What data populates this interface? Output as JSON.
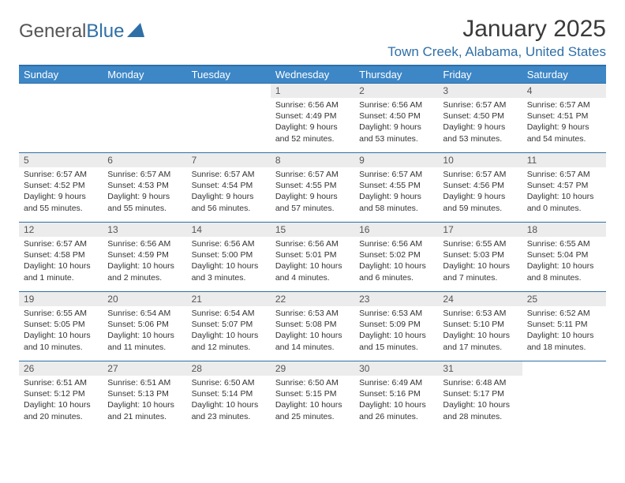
{
  "brand": {
    "part1": "General",
    "part2": "Blue"
  },
  "title": "January 2025",
  "location": "Town Creek, Alabama, United States",
  "colors": {
    "header_bg": "#3d87c7",
    "header_border": "#2f6fa7",
    "row_border": "#2f6fa7",
    "daynum_bg": "#ececec",
    "text": "#333333",
    "location_color": "#2f6fa7"
  },
  "font": {
    "title_size": 30,
    "location_size": 17,
    "th_size": 13,
    "cell_size": 10.5
  },
  "day_names": [
    "Sunday",
    "Monday",
    "Tuesday",
    "Wednesday",
    "Thursday",
    "Friday",
    "Saturday"
  ],
  "weeks": [
    [
      null,
      null,
      null,
      {
        "n": "1",
        "sunrise": "6:56 AM",
        "sunset": "4:49 PM",
        "daylight": "9 hours and 52 minutes."
      },
      {
        "n": "2",
        "sunrise": "6:56 AM",
        "sunset": "4:50 PM",
        "daylight": "9 hours and 53 minutes."
      },
      {
        "n": "3",
        "sunrise": "6:57 AM",
        "sunset": "4:50 PM",
        "daylight": "9 hours and 53 minutes."
      },
      {
        "n": "4",
        "sunrise": "6:57 AM",
        "sunset": "4:51 PM",
        "daylight": "9 hours and 54 minutes."
      }
    ],
    [
      {
        "n": "5",
        "sunrise": "6:57 AM",
        "sunset": "4:52 PM",
        "daylight": "9 hours and 55 minutes."
      },
      {
        "n": "6",
        "sunrise": "6:57 AM",
        "sunset": "4:53 PM",
        "daylight": "9 hours and 55 minutes."
      },
      {
        "n": "7",
        "sunrise": "6:57 AM",
        "sunset": "4:54 PM",
        "daylight": "9 hours and 56 minutes."
      },
      {
        "n": "8",
        "sunrise": "6:57 AM",
        "sunset": "4:55 PM",
        "daylight": "9 hours and 57 minutes."
      },
      {
        "n": "9",
        "sunrise": "6:57 AM",
        "sunset": "4:55 PM",
        "daylight": "9 hours and 58 minutes."
      },
      {
        "n": "10",
        "sunrise": "6:57 AM",
        "sunset": "4:56 PM",
        "daylight": "9 hours and 59 minutes."
      },
      {
        "n": "11",
        "sunrise": "6:57 AM",
        "sunset": "4:57 PM",
        "daylight": "10 hours and 0 minutes."
      }
    ],
    [
      {
        "n": "12",
        "sunrise": "6:57 AM",
        "sunset": "4:58 PM",
        "daylight": "10 hours and 1 minute."
      },
      {
        "n": "13",
        "sunrise": "6:56 AM",
        "sunset": "4:59 PM",
        "daylight": "10 hours and 2 minutes."
      },
      {
        "n": "14",
        "sunrise": "6:56 AM",
        "sunset": "5:00 PM",
        "daylight": "10 hours and 3 minutes."
      },
      {
        "n": "15",
        "sunrise": "6:56 AM",
        "sunset": "5:01 PM",
        "daylight": "10 hours and 4 minutes."
      },
      {
        "n": "16",
        "sunrise": "6:56 AM",
        "sunset": "5:02 PM",
        "daylight": "10 hours and 6 minutes."
      },
      {
        "n": "17",
        "sunrise": "6:55 AM",
        "sunset": "5:03 PM",
        "daylight": "10 hours and 7 minutes."
      },
      {
        "n": "18",
        "sunrise": "6:55 AM",
        "sunset": "5:04 PM",
        "daylight": "10 hours and 8 minutes."
      }
    ],
    [
      {
        "n": "19",
        "sunrise": "6:55 AM",
        "sunset": "5:05 PM",
        "daylight": "10 hours and 10 minutes."
      },
      {
        "n": "20",
        "sunrise": "6:54 AM",
        "sunset": "5:06 PM",
        "daylight": "10 hours and 11 minutes."
      },
      {
        "n": "21",
        "sunrise": "6:54 AM",
        "sunset": "5:07 PM",
        "daylight": "10 hours and 12 minutes."
      },
      {
        "n": "22",
        "sunrise": "6:53 AM",
        "sunset": "5:08 PM",
        "daylight": "10 hours and 14 minutes."
      },
      {
        "n": "23",
        "sunrise": "6:53 AM",
        "sunset": "5:09 PM",
        "daylight": "10 hours and 15 minutes."
      },
      {
        "n": "24",
        "sunrise": "6:53 AM",
        "sunset": "5:10 PM",
        "daylight": "10 hours and 17 minutes."
      },
      {
        "n": "25",
        "sunrise": "6:52 AM",
        "sunset": "5:11 PM",
        "daylight": "10 hours and 18 minutes."
      }
    ],
    [
      {
        "n": "26",
        "sunrise": "6:51 AM",
        "sunset": "5:12 PM",
        "daylight": "10 hours and 20 minutes."
      },
      {
        "n": "27",
        "sunrise": "6:51 AM",
        "sunset": "5:13 PM",
        "daylight": "10 hours and 21 minutes."
      },
      {
        "n": "28",
        "sunrise": "6:50 AM",
        "sunset": "5:14 PM",
        "daylight": "10 hours and 23 minutes."
      },
      {
        "n": "29",
        "sunrise": "6:50 AM",
        "sunset": "5:15 PM",
        "daylight": "10 hours and 25 minutes."
      },
      {
        "n": "30",
        "sunrise": "6:49 AM",
        "sunset": "5:16 PM",
        "daylight": "10 hours and 26 minutes."
      },
      {
        "n": "31",
        "sunrise": "6:48 AM",
        "sunset": "5:17 PM",
        "daylight": "10 hours and 28 minutes."
      },
      null
    ]
  ],
  "labels": {
    "sunrise": "Sunrise:",
    "sunset": "Sunset:",
    "daylight": "Daylight:"
  }
}
